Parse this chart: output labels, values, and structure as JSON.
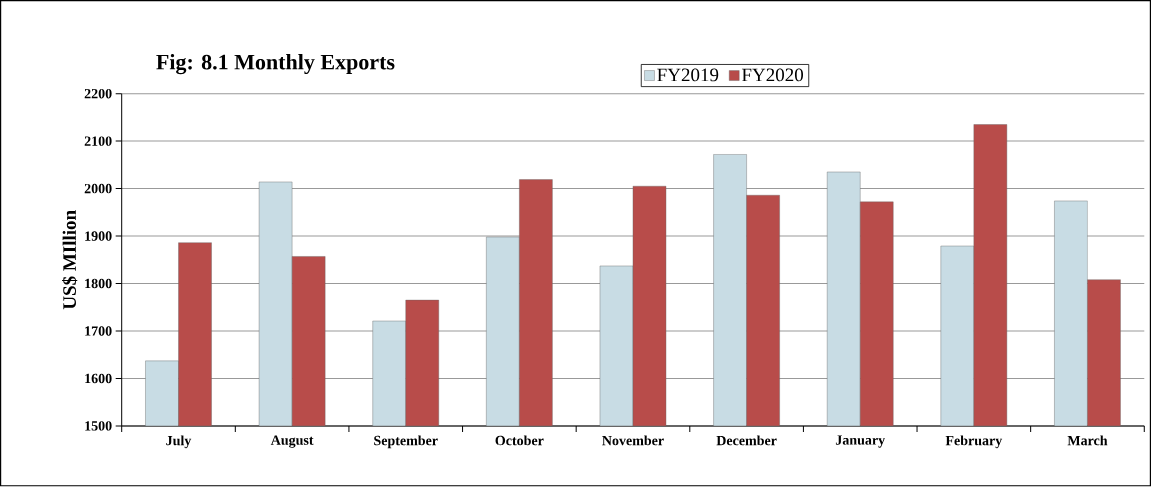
{
  "chart_data": {
    "type": "bar",
    "title": "Fig: 8.1 Monthly Exports",
    "ylabel": "US$ MIllion",
    "categories": [
      "July",
      "August",
      "September",
      "October",
      "November",
      "December",
      "January",
      "February",
      "March"
    ],
    "series": [
      {
        "name": "FY2019",
        "color": "#c8dce4",
        "values": [
          1637,
          2014,
          1721,
          1898,
          1837,
          2072,
          2035,
          1879,
          1974
        ]
      },
      {
        "name": "FY2020",
        "color": "#b84c4a",
        "values": [
          1886,
          1857,
          1765,
          2019,
          2005,
          1986,
          1972,
          2135,
          1808
        ]
      }
    ],
    "ylim": [
      1500,
      2200
    ],
    "yticks": [
      1500,
      1600,
      1700,
      1800,
      1900,
      2000,
      2100,
      2200
    ],
    "grid": "y",
    "legend": "top"
  }
}
